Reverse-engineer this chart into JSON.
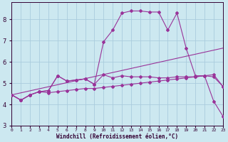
{
  "xlabel": "Windchill (Refroidissement éolien,°C)",
  "background_color": "#cce8f0",
  "grid_color": "#aaccdd",
  "line_color": "#993399",
  "x_ticks": [
    0,
    1,
    2,
    3,
    4,
    5,
    6,
    7,
    8,
    9,
    10,
    11,
    12,
    13,
    14,
    15,
    16,
    17,
    18,
    19,
    20,
    21,
    22,
    23
  ],
  "ylim": [
    3.0,
    8.8
  ],
  "xlim": [
    0,
    23
  ],
  "line1_x": [
    0,
    1,
    2,
    3,
    4,
    5,
    6,
    7,
    8,
    9,
    10,
    11,
    12,
    13,
    14,
    15,
    16,
    17,
    18,
    19,
    20,
    21,
    22,
    23
  ],
  "line1_y": [
    4.45,
    4.2,
    4.45,
    4.6,
    4.65,
    5.35,
    5.1,
    5.15,
    5.2,
    4.95,
    5.4,
    5.25,
    5.35,
    5.3,
    5.3,
    5.3,
    5.25,
    5.25,
    5.3,
    5.3,
    5.3,
    5.35,
    5.3,
    4.85
  ],
  "line2_x": [
    0,
    1,
    2,
    3,
    4,
    5,
    6,
    7,
    8,
    9,
    10,
    11,
    12,
    13,
    14,
    15,
    16,
    17,
    18,
    19,
    20,
    21,
    22,
    23
  ],
  "line2_y": [
    4.45,
    4.2,
    4.45,
    4.6,
    4.65,
    5.35,
    5.1,
    5.15,
    5.2,
    4.95,
    6.95,
    7.5,
    8.3,
    8.4,
    8.4,
    8.35,
    8.35,
    7.5,
    8.3,
    6.65,
    5.35,
    5.35,
    4.15,
    3.45
  ],
  "line3_x": [
    0,
    1,
    2,
    3,
    4,
    5,
    6,
    7,
    8,
    9,
    10,
    11,
    12,
    13,
    14,
    15,
    16,
    17,
    18,
    19,
    20,
    21,
    22,
    23
  ],
  "line3_y": [
    4.45,
    4.2,
    4.45,
    4.6,
    4.55,
    4.6,
    4.65,
    4.7,
    4.75,
    4.75,
    4.8,
    4.85,
    4.9,
    4.95,
    5.0,
    5.05,
    5.1,
    5.15,
    5.2,
    5.25,
    5.3,
    5.35,
    5.4,
    4.85
  ],
  "line4_x": [
    0,
    23
  ],
  "line4_y": [
    4.45,
    6.65
  ]
}
